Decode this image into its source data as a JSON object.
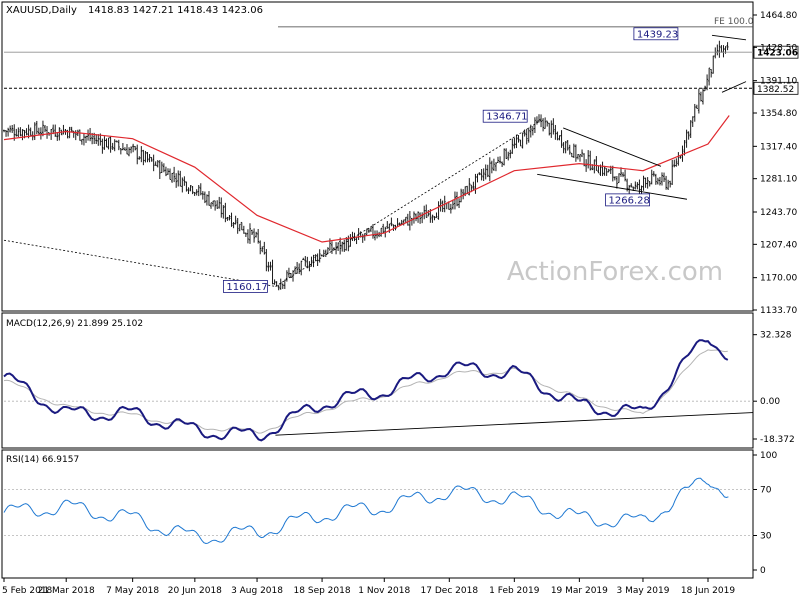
{
  "header": {
    "symbol": "XAUUSD,Daily",
    "ohlc": "1418.83 1427.21 1418.43 1423.06"
  },
  "watermark": "ActionForex.com",
  "colors": {
    "price": "#1a1a1a",
    "sma": "#e0282e",
    "macd": "#1a1a80",
    "signal": "#b4b4b4",
    "rsi": "#1e78d2",
    "annotation_border": "#1a1a80"
  },
  "chart_data": [
    {
      "type": "candlestick",
      "panel": "price",
      "ylim": [
        1133.7,
        1464.8
      ],
      "y_ticks": [
        "1464.80",
        "1428.50",
        "1391.10",
        "1354.80",
        "1317.40",
        "1281.10",
        "1243.70",
        "1207.40",
        "1170.00",
        "1133.70"
      ],
      "x_ticks": [
        "5 Feb 2018",
        "21 Mar 2018",
        "7 May 2018",
        "20 Jun 2018",
        "3 Aug 2018",
        "18 Sep 2018",
        "1 Nov 2018",
        "17 Dec 2018",
        "1 Feb 2019",
        "19 Mar 2019",
        "3 May 2019",
        "18 Jun 2019"
      ],
      "price_anchors": {
        "x": [
          "5 Feb 2018",
          "21 Mar 2018",
          "7 May 2018",
          "20 Jun 2018",
          "3 Aug 2018",
          "16 Aug 2018",
          "18 Sep 2018",
          "1 Nov 2018",
          "17 Dec 2018",
          "20 Feb 2019",
          "19 Mar 2019",
          "2 May 2019",
          "3 May 2019",
          "21 May 2019",
          "18 Jun 2019",
          "25 Jun 2019",
          "3 Jul 2019"
        ],
        "close": [
          1335,
          1335,
          1312,
          1270,
          1212,
          1162,
          1198,
          1225,
          1250,
          1346,
          1305,
          1268,
          1282,
          1276,
          1395,
          1425,
          1423
        ]
      },
      "moving_average": {
        "x": [
          "5 Feb 2018",
          "21 Mar 2018",
          "7 May 2018",
          "20 Jun 2018",
          "3 Aug 2018",
          "18 Sep 2018",
          "1 Nov 2018",
          "17 Dec 2018",
          "1 Feb 2019",
          "19 Mar 2019",
          "3 May 2019",
          "18 Jun 2019",
          "3 Jul 2019"
        ],
        "y": [
          1325,
          1334,
          1326,
          1294,
          1240,
          1210,
          1220,
          1255,
          1290,
          1298,
          1290,
          1320,
          1352
        ]
      },
      "annotations": [
        {
          "label": "1160.17",
          "x": "16 Aug 2018",
          "y": 1160.17
        },
        {
          "label": "1346.71",
          "x": "20 Feb 2019",
          "y": 1346.71
        },
        {
          "label": "1266.28",
          "x": "2 May 2019",
          "y": 1266.28
        },
        {
          "label": "1439.23",
          "x": "25 Jun 2019",
          "y": 1439.23
        },
        {
          "label": "FE 100.0",
          "y": 1451.5
        }
      ],
      "levels": [
        {
          "label": "1423.06",
          "y": 1423.06,
          "style": "current"
        },
        {
          "label": "1382.52",
          "y": 1382.52,
          "style": "dashed"
        }
      ]
    },
    {
      "type": "line",
      "panel": "macd",
      "title": "MACD(12,26,9) 21.899 25.102",
      "ylim": [
        -18.372,
        38.0
      ],
      "y_ticks": [
        "32.328",
        "0.00",
        "-18.372"
      ],
      "macd": {
        "x": [
          "5 Feb 2018",
          "21 Mar 2018",
          "7 May 2018",
          "20 Jun 2018",
          "3 Aug 2018",
          "18 Sep 2018",
          "1 Nov 2018",
          "17 Dec 2018",
          "1 Feb 2019",
          "19 Mar 2019",
          "3 May 2019",
          "18 Jun 2019",
          "3 Jul 2019"
        ],
        "y": [
          12,
          -6,
          -6,
          -14,
          -17,
          -1,
          5,
          16,
          14,
          -2,
          -6,
          32,
          21.899
        ]
      },
      "signal": {
        "x": [
          "5 Feb 2018",
          "21 Mar 2018",
          "7 May 2018",
          "20 Jun 2018",
          "3 Aug 2018",
          "18 Sep 2018",
          "1 Nov 2018",
          "17 Dec 2018",
          "1 Feb 2019",
          "19 Mar 2019",
          "3 May 2019",
          "18 Jun 2019",
          "3 Jul 2019"
        ],
        "y": [
          10,
          -3,
          -7,
          -12,
          -15,
          -4,
          3,
          13,
          15,
          1,
          -7,
          26,
          25.102
        ]
      }
    },
    {
      "type": "line",
      "panel": "rsi",
      "title": "RSI(14) 66.9157",
      "ylim": [
        0,
        100
      ],
      "y_ticks": [
        "100",
        "70",
        "30",
        "0"
      ],
      "rsi": {
        "x": [
          "5 Feb 2018",
          "21 Mar 2018",
          "7 May 2018",
          "20 Jun 2018",
          "3 Aug 2018",
          "18 Sep 2018",
          "1 Nov 2018",
          "17 Dec 2018",
          "1 Feb 2019",
          "19 Mar 2019",
          "3 May 2019",
          "18 Jun 2019",
          "3 Jul 2019"
        ],
        "y": [
          50,
          55,
          45,
          28,
          33,
          48,
          55,
          68,
          62,
          45,
          42,
          80,
          66.9157
        ]
      }
    }
  ]
}
